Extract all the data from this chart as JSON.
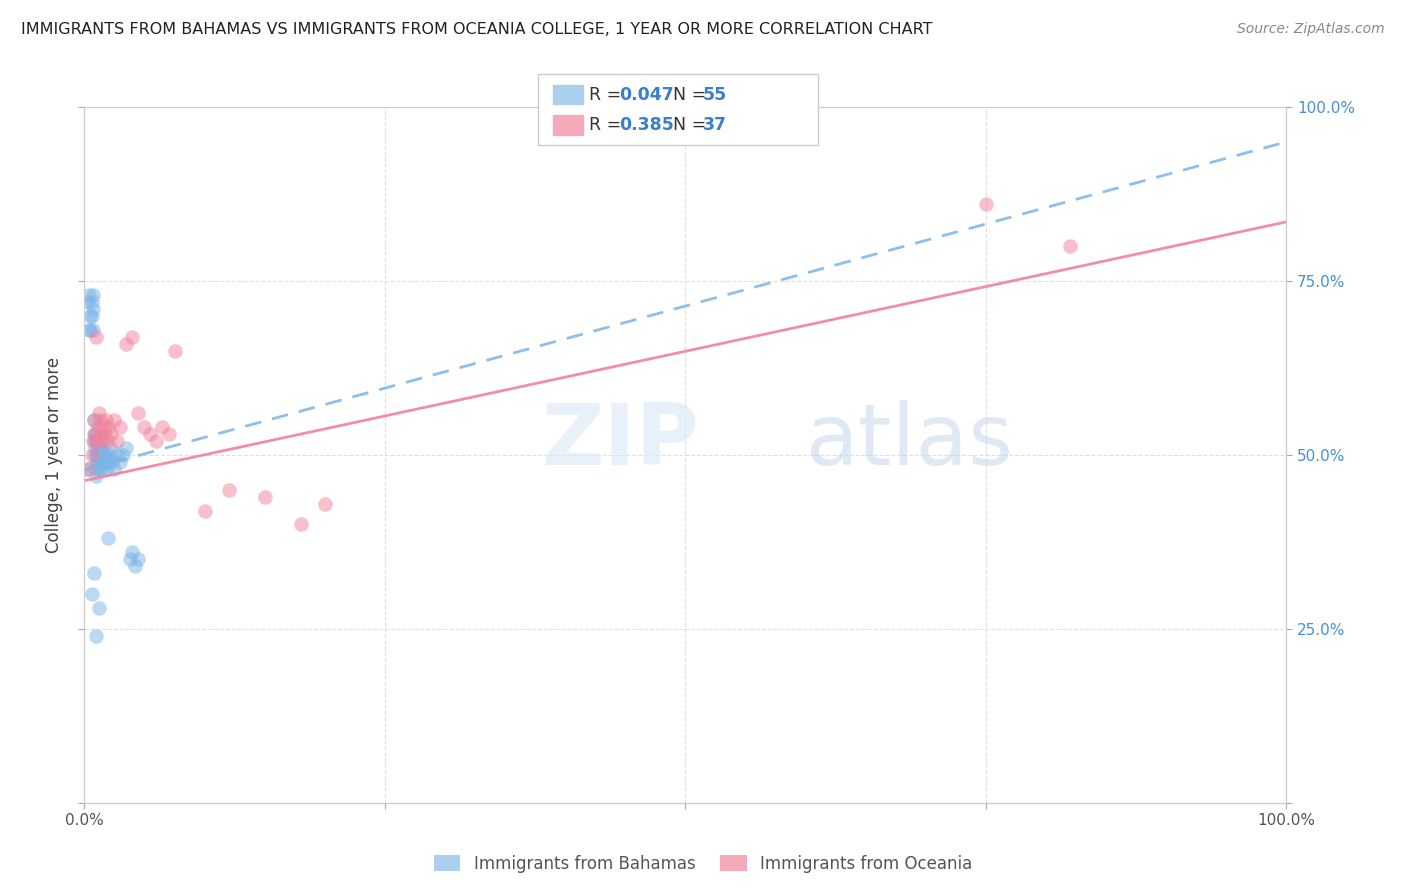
{
  "title": "IMMIGRANTS FROM BAHAMAS VS IMMIGRANTS FROM OCEANIA COLLEGE, 1 YEAR OR MORE CORRELATION CHART",
  "source": "Source: ZipAtlas.com",
  "ylabel": "College, 1 year or more",
  "xlim": [
    0.0,
    1.0
  ],
  "ylim": [
    0.0,
    1.0
  ],
  "x_ticks": [
    0.0,
    0.25,
    0.5,
    0.75,
    1.0
  ],
  "y_ticks": [
    0.0,
    0.25,
    0.5,
    0.75,
    1.0
  ],
  "x_tick_labels": [
    "0.0%",
    "",
    "",
    "",
    "100.0%"
  ],
  "y_tick_labels_right": [
    "",
    "25.0%",
    "50.0%",
    "75.0%",
    "100.0%"
  ],
  "legend_R1": "0.047",
  "legend_N1": "55",
  "legend_R2": "0.385",
  "legend_N2": "37",
  "series1_name": "Immigrants from Bahamas",
  "series2_name": "Immigrants from Oceania",
  "series1_color": "#7ab4e8",
  "series2_color": "#f0829a",
  "series1_legend_color": "#aacfef",
  "series2_legend_color": "#f5aabb",
  "watermark_zip": "ZIP",
  "watermark_atlas": "atlas",
  "background_color": "#ffffff",
  "grid_color": "#dddddd",
  "series1_x": [
    0.002,
    0.003,
    0.004,
    0.004,
    0.005,
    0.005,
    0.006,
    0.006,
    0.007,
    0.007,
    0.007,
    0.008,
    0.008,
    0.008,
    0.009,
    0.009,
    0.009,
    0.009,
    0.01,
    0.01,
    0.01,
    0.01,
    0.011,
    0.011,
    0.011,
    0.012,
    0.012,
    0.013,
    0.013,
    0.014,
    0.014,
    0.015,
    0.015,
    0.016,
    0.017,
    0.018,
    0.019,
    0.02,
    0.021,
    0.022,
    0.023,
    0.025,
    0.027,
    0.03,
    0.032,
    0.035,
    0.038,
    0.04,
    0.042,
    0.045,
    0.012,
    0.01,
    0.008,
    0.006,
    0.02
  ],
  "series1_y": [
    0.48,
    0.72,
    0.73,
    0.68,
    0.68,
    0.7,
    0.7,
    0.72,
    0.71,
    0.73,
    0.68,
    0.53,
    0.55,
    0.52,
    0.51,
    0.53,
    0.5,
    0.48,
    0.5,
    0.49,
    0.47,
    0.52,
    0.51,
    0.49,
    0.5,
    0.51,
    0.48,
    0.5,
    0.49,
    0.52,
    0.48,
    0.51,
    0.49,
    0.5,
    0.49,
    0.5,
    0.48,
    0.49,
    0.5,
    0.51,
    0.49,
    0.48,
    0.5,
    0.49,
    0.5,
    0.51,
    0.35,
    0.36,
    0.34,
    0.35,
    0.28,
    0.24,
    0.33,
    0.3,
    0.38
  ],
  "series2_x": [
    0.003,
    0.006,
    0.007,
    0.008,
    0.009,
    0.01,
    0.01,
    0.011,
    0.012,
    0.013,
    0.014,
    0.015,
    0.016,
    0.017,
    0.018,
    0.019,
    0.02,
    0.022,
    0.025,
    0.027,
    0.03,
    0.035,
    0.04,
    0.045,
    0.05,
    0.055,
    0.06,
    0.065,
    0.07,
    0.075,
    0.1,
    0.12,
    0.15,
    0.18,
    0.2,
    0.75,
    0.82
  ],
  "series2_y": [
    0.48,
    0.5,
    0.52,
    0.55,
    0.53,
    0.52,
    0.67,
    0.54,
    0.56,
    0.55,
    0.53,
    0.52,
    0.54,
    0.53,
    0.55,
    0.52,
    0.54,
    0.53,
    0.55,
    0.52,
    0.54,
    0.66,
    0.67,
    0.56,
    0.54,
    0.53,
    0.52,
    0.54,
    0.53,
    0.65,
    0.42,
    0.45,
    0.44,
    0.4,
    0.43,
    0.86,
    0.8
  ],
  "line1_x0": 0.0,
  "line1_y0": 0.478,
  "line1_x1": 1.0,
  "line1_y1": 0.95,
  "line2_x0": 0.0,
  "line2_y0": 0.463,
  "line2_x1": 1.0,
  "line2_y1": 0.835
}
